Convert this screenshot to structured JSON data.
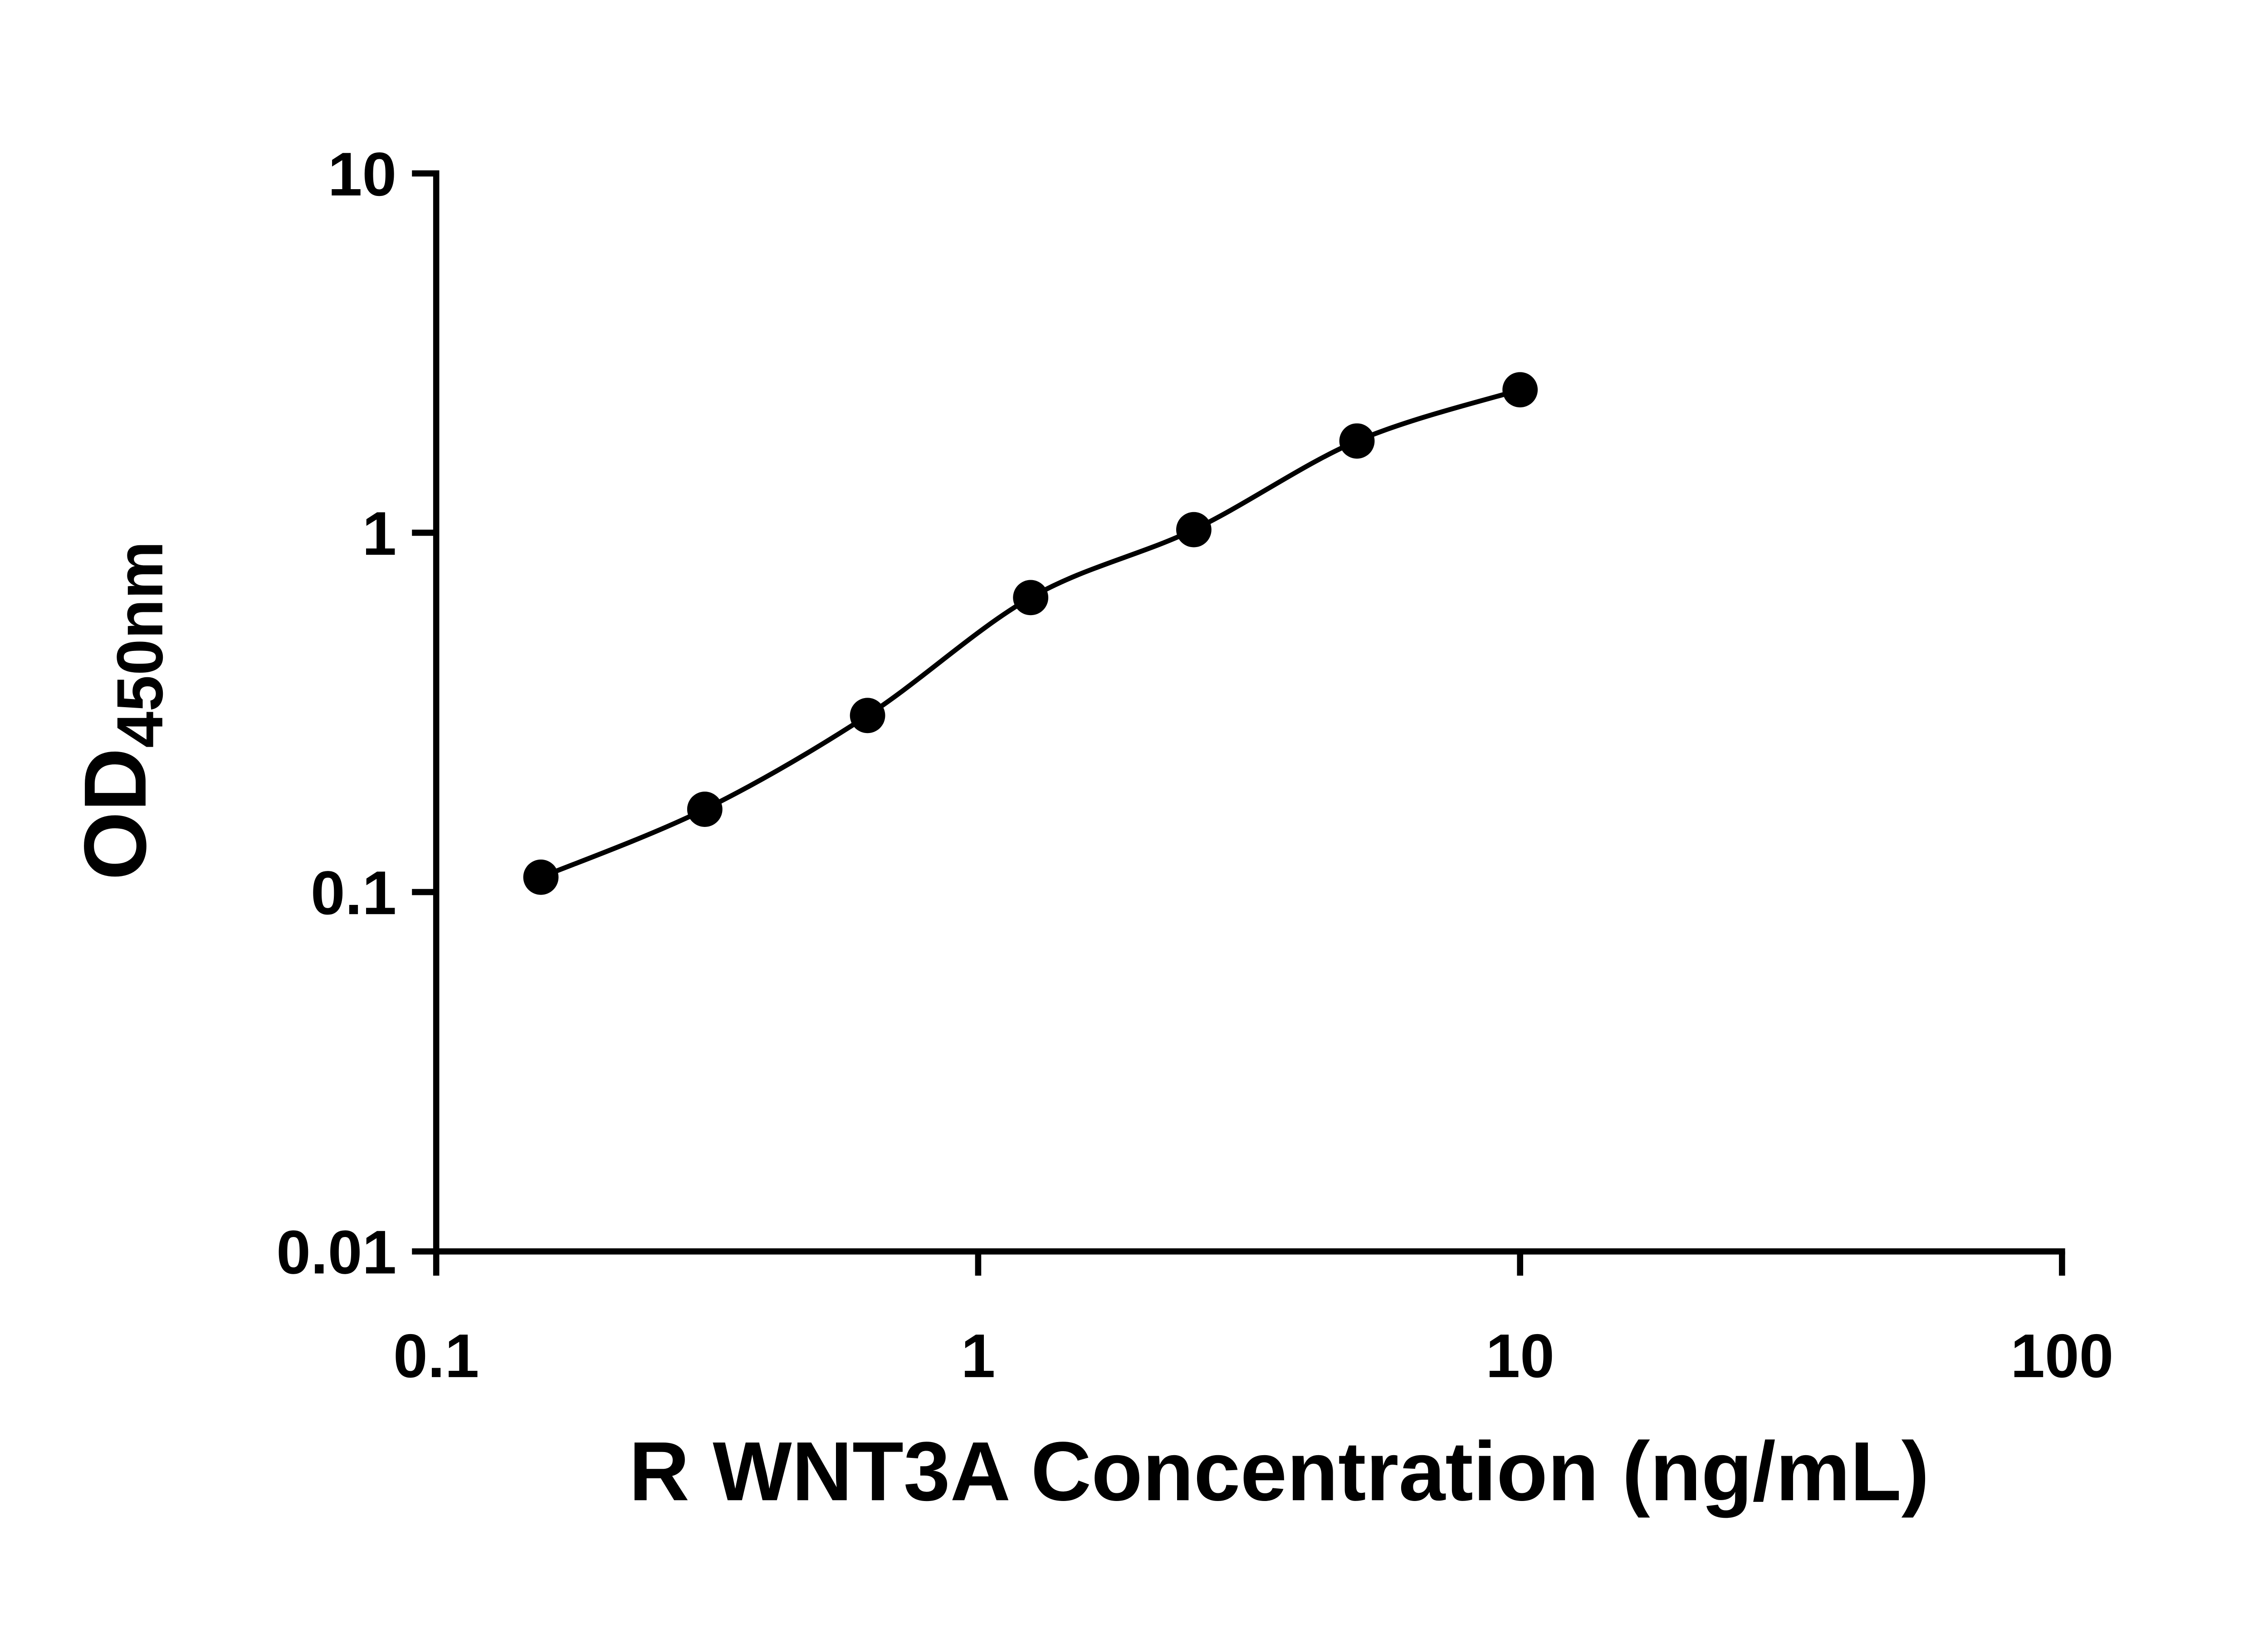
{
  "figure": {
    "background_color": "#ffffff",
    "foreground_color": "#000000"
  },
  "chart_data": {
    "type": "scatter",
    "subtype": "elisa-standard-curve",
    "title": "",
    "xlabel": "R WNT3A Concentration (ng/mL)",
    "ylabel": "OD450nm",
    "ylabel_base": "OD",
    "ylabel_subscript": "450nm",
    "x_scale": "log10",
    "y_scale": "log10",
    "xlim": [
      0.1,
      100
    ],
    "ylim": [
      0.01,
      10
    ],
    "x_ticks": [
      0.1,
      1,
      10,
      100
    ],
    "x_tick_labels": [
      "0.1",
      "1",
      "10",
      "100"
    ],
    "y_ticks": [
      10,
      1,
      0.1,
      0.01
    ],
    "y_tick_labels": [
      "10",
      "1",
      "0.1",
      "0.01"
    ],
    "grid": false,
    "legend": false,
    "marker_color": "#000000",
    "line_color": "#000000",
    "series": [
      {
        "marker": "filled-circle",
        "line": "smooth-fit-curve",
        "points": [
          {
            "x": 0.156,
            "y": 0.11
          },
          {
            "x": 0.313,
            "y": 0.17
          },
          {
            "x": 0.625,
            "y": 0.31
          },
          {
            "x": 1.25,
            "y": 0.66
          },
          {
            "x": 2.5,
            "y": 1.02
          },
          {
            "x": 5,
            "y": 1.8
          },
          {
            "x": 10,
            "y": 2.5
          }
        ]
      }
    ]
  }
}
